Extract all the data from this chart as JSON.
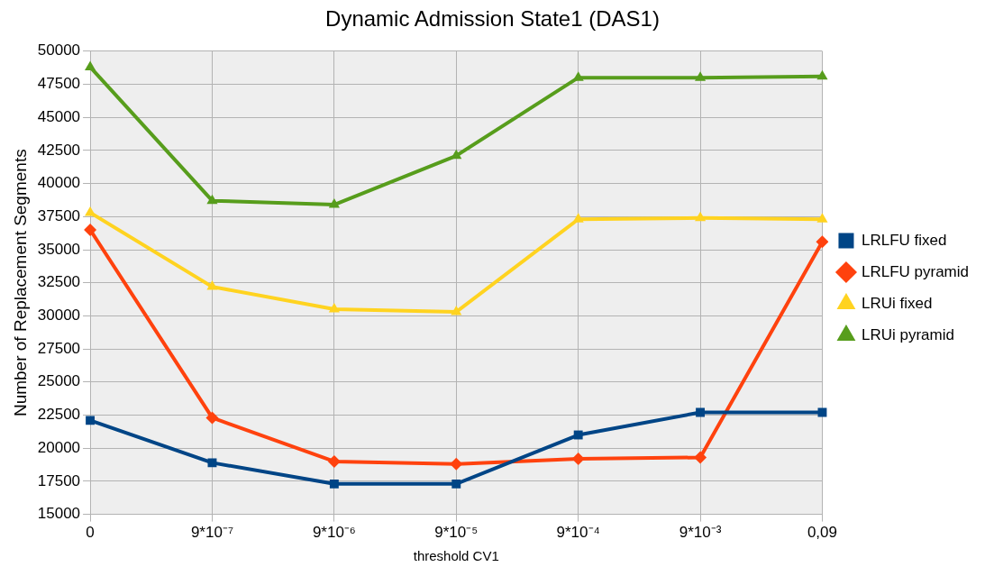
{
  "chart_data": {
    "type": "line",
    "title": "Dynamic Admission State1 (DAS1)",
    "xlabel": "threshold CV1",
    "ylabel": "Number of Replacement Segments",
    "categories": [
      "0",
      "9*10⁻⁷",
      "9*10⁻⁶",
      "9*10⁻⁵",
      "9*10⁻⁴",
      "9*10⁻³",
      "0,09"
    ],
    "series": [
      {
        "name": "LRLFU fixed",
        "color": "#004586",
        "marker": "square",
        "values": [
          22100,
          18900,
          17300,
          17300,
          21000,
          22700,
          22700
        ]
      },
      {
        "name": "LRLFU pyramid",
        "color": "#ff420e",
        "marker": "diamond",
        "values": [
          36500,
          22300,
          19000,
          18800,
          19200,
          19300,
          35600
        ]
      },
      {
        "name": "LRUi fixed",
        "color": "#ffd320",
        "marker": "triangle",
        "values": [
          37800,
          32200,
          30500,
          30300,
          37300,
          37400,
          37300
        ]
      },
      {
        "name": "LRUi pyramid",
        "color": "#579d1c",
        "marker": "triangle",
        "values": [
          48800,
          38700,
          38400,
          42100,
          48000,
          48000,
          48100
        ]
      }
    ],
    "ylim": [
      15000,
      50000
    ],
    "yticks": [
      15000,
      17500,
      20000,
      22500,
      25000,
      27500,
      30000,
      32500,
      35000,
      37500,
      40000,
      42500,
      45000,
      47500,
      50000
    ],
    "grid": true,
    "legend": "right",
    "line_style": "solid"
  }
}
